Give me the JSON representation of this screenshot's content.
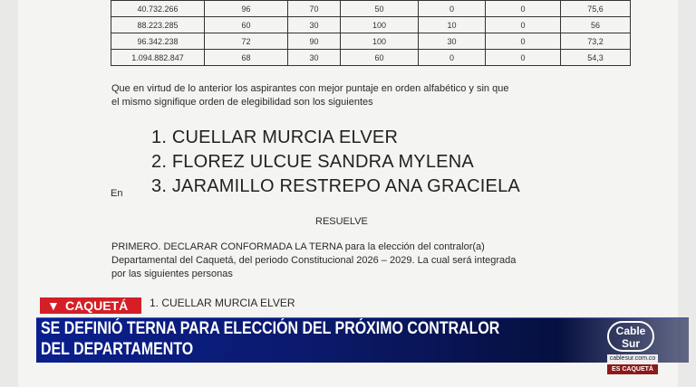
{
  "table": {
    "rows": [
      [
        "40.732.266",
        "96",
        "70",
        "50",
        "0",
        "0",
        "75,6"
      ],
      [
        "88.223.285",
        "60",
        "30",
        "100",
        "10",
        "0",
        "56"
      ],
      [
        "96.342.238",
        "72",
        "90",
        "100",
        "30",
        "0",
        "73,2"
      ],
      [
        "1.094.882.847",
        "68",
        "30",
        "60",
        "0",
        "0",
        "54,3"
      ]
    ]
  },
  "doc": {
    "para1_l1": "Que en virtud de lo anterior los aspirantes con mejor puntaje en orden alfabético y sin que",
    "para1_l2": "el mismo signifique orden de elegibilidad son los siguientes",
    "names": [
      "1. CUELLAR MURCIA ELVER",
      "2. FLOREZ ULCUE SANDRA MYLENA",
      "3. JARAMILLO RESTREPO ANA GRACIELA"
    ],
    "en": "En",
    "resuelve": "RESUELVE",
    "primero_l1": "PRIMERO. DECLARAR CONFORMADA LA TERNA para la elección del contralor(a)",
    "primero_l2": "Departamental del Caquetá, del periodo Constitucional 2026 – 2029. La cual será integrada",
    "primero_l3": "por las siguientes personas",
    "list_item": "1. CUELLAR MURCIA ELVER"
  },
  "overlay": {
    "location_tag": "CAQUETÁ",
    "headline_l1": "SE DEFINIÓ TERNA PARA ELECCIÓN DEL PRÓXIMO CONTRALOR",
    "headline_l2": "DEL DEPARTAMENTO",
    "logo": "Cable Sur",
    "url": "cablesur.com.co",
    "slogan": "ES CAQUETÁ",
    "tag_color": "#d41f26",
    "banner_color": "#0a1f8f"
  }
}
